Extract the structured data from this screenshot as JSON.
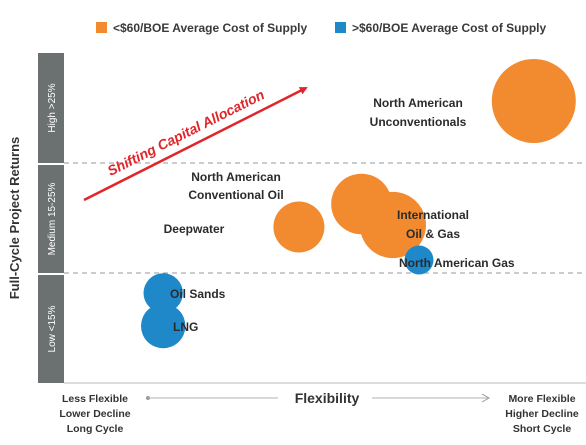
{
  "chart_data": {
    "type": "bubble",
    "legend": [
      {
        "label": "<$60/BOE Average Cost of Supply",
        "color": "#F28A30"
      },
      {
        "label": ">$60/BOE Average Cost of Supply",
        "color": "#1E88C8"
      }
    ],
    "y_axis": {
      "title": "Full-Cycle Project Returns",
      "bands": [
        "High >25%",
        "Medium 15-25%",
        "Low <15%"
      ]
    },
    "x_axis": {
      "title": "Flexibility",
      "left_label": [
        "Less Flexible",
        "Lower Decline",
        "Long Cycle"
      ],
      "right_label": [
        "More Flexible",
        "Higher Decline",
        "Short Cycle"
      ]
    },
    "annotation": {
      "text": "Shifting Capital Allocation",
      "color": "#E0252B"
    },
    "bubbles": [
      {
        "label": [
          "North American",
          "Unconventionals"
        ],
        "flexibility": 0.9,
        "returns_band": "High >25%",
        "size": 1.0,
        "category": "<$60/BOE Average Cost of Supply"
      },
      {
        "label": [
          "North American",
          "Conventional Oil"
        ],
        "flexibility": 0.57,
        "returns_band": "Medium 15-25%",
        "size": 0.52,
        "category": "<$60/BOE Average Cost of Supply"
      },
      {
        "label": [
          "International",
          "Oil & Gas"
        ],
        "flexibility": 0.63,
        "returns_band": "Medium 15-25%",
        "size": 0.62,
        "category": "<$60/BOE Average Cost of Supply"
      },
      {
        "label": [
          "Deepwater"
        ],
        "flexibility": 0.45,
        "returns_band": "Medium 15-25%",
        "size": 0.37,
        "category": "<$60/BOE Average Cost of Supply"
      },
      {
        "label": [
          "North American Gas"
        ],
        "flexibility": 0.68,
        "returns_band": "Medium 15-25%",
        "size": 0.12,
        "category": ">$60/BOE Average Cost of Supply"
      },
      {
        "label": [
          "Oil Sands"
        ],
        "flexibility": 0.19,
        "returns_band": "Low <15%",
        "size": 0.22,
        "category": ">$60/BOE Average Cost of Supply"
      },
      {
        "label": [
          "LNG"
        ],
        "flexibility": 0.19,
        "returns_band": "Low <15%",
        "size": 0.28,
        "category": ">$60/BOE Average Cost of Supply"
      }
    ]
  }
}
